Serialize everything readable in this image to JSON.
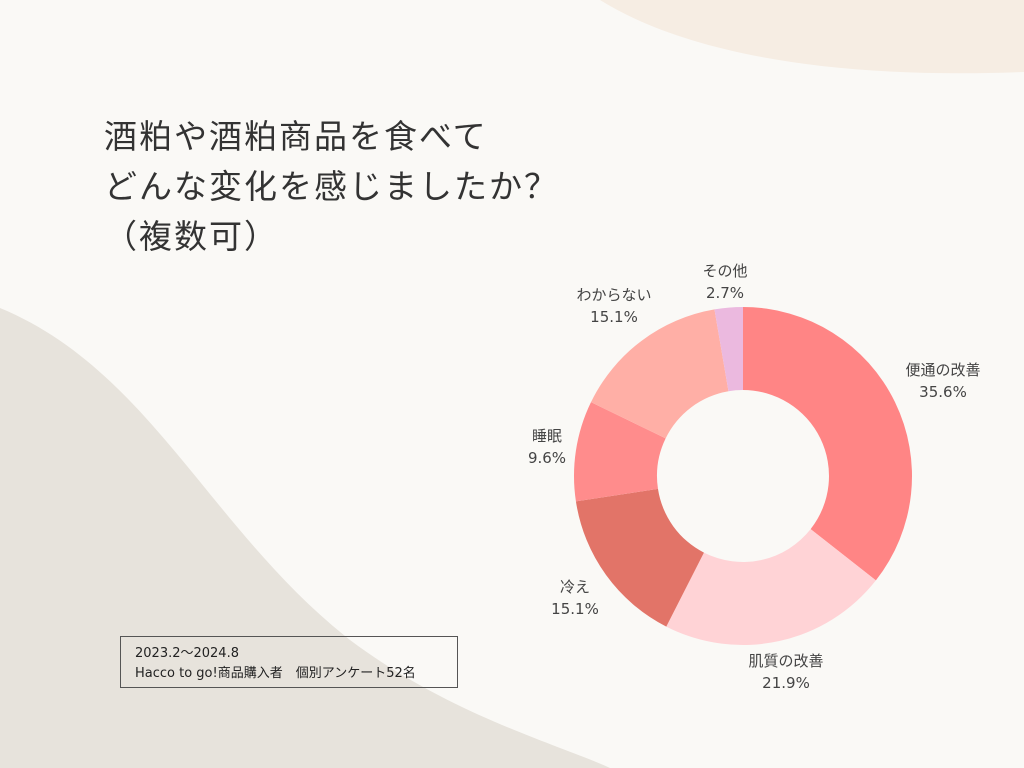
{
  "title_lines": [
    "酒粕や酒粕商品を食べて",
    "どんな変化を感じましたか？",
    "（複数可）"
  ],
  "note": {
    "period": "2023.2〜2024.8",
    "sample": "Hacco to go!商品購入者　個別アンケート52名"
  },
  "colors": {
    "background": "#faf9f6",
    "top_blob": "#f6ede3",
    "left_blob": "#e7e3dc"
  },
  "chart_data": {
    "type": "pie",
    "donut": true,
    "title": "",
    "slices": [
      {
        "label": "便通の改善",
        "value": 35.6,
        "display": "35.6%",
        "color": "#ff8585"
      },
      {
        "label": "肌質の改善",
        "value": 21.9,
        "display": "21.9%",
        "color": "#ffd3d6"
      },
      {
        "label": "冷え",
        "value": 15.1,
        "display": "15.1%",
        "color": "#e27468"
      },
      {
        "label": "睡眠",
        "value": 9.6,
        "display": "9.6%",
        "color": "#ff8c8c"
      },
      {
        "label": "わからない",
        "value": 15.1,
        "display": "15.1%",
        "color": "#ffafa6"
      },
      {
        "label": "その他",
        "value": 2.7,
        "display": "2.7%",
        "color": "#ebb9df"
      }
    ]
  }
}
